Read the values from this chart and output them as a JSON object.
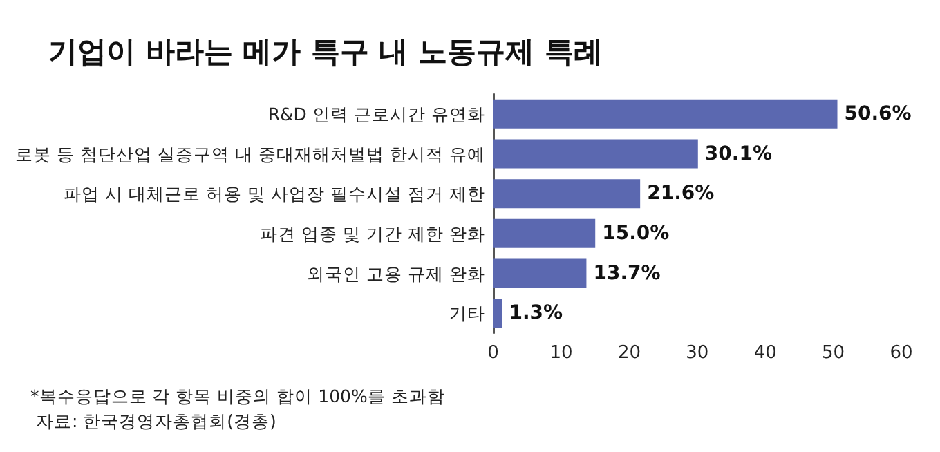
{
  "chart_data": {
    "type": "bar",
    "orientation": "horizontal",
    "title": "기업이 바라는 메가 특구 내 노동규제 특례",
    "categories": [
      "R&D 인력 근로시간 유연화",
      "로봇 등 첨단산업 실증구역 내 중대재해처벌법 한시적 유예",
      "파업 시 대체근로 허용 및 사업장 필수시설 점거 제한",
      "파견 업종 및 기간 제한 완화",
      "외국인 고용 규제 완화",
      "기타"
    ],
    "values": [
      50.6,
      30.1,
      21.6,
      15.0,
      13.7,
      1.3
    ],
    "value_labels": [
      "50.6%",
      "30.1%",
      "21.6%",
      "15.0%",
      "13.7%",
      "1.3%"
    ],
    "color": "#5b68b0",
    "xlim": [
      0,
      60
    ],
    "xticks": [
      0,
      10,
      20,
      30,
      40,
      50,
      60
    ],
    "grid": false,
    "annotations": [
      "*복수응답으로 각 항목 비중의 합이 100%를 초과함",
      "자료: 한국경영자총협회(경총)"
    ]
  }
}
